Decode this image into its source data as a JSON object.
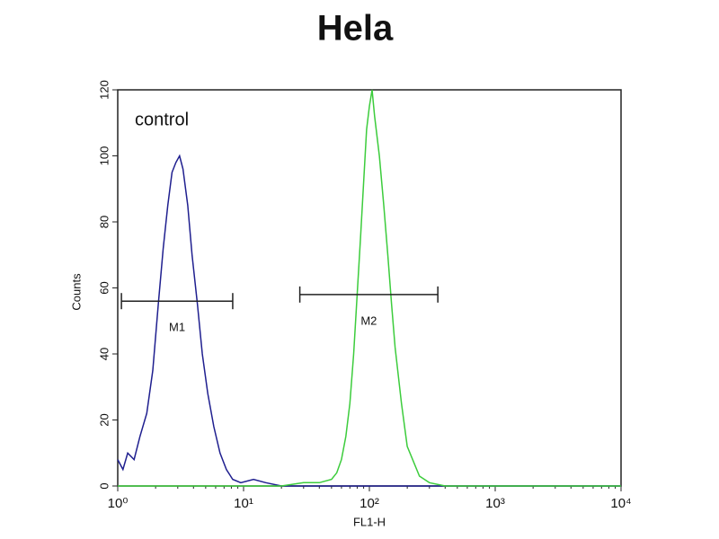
{
  "chart_data": {
    "type": "histogram-line",
    "title": "Hela",
    "xlabel": "FL1-H",
    "ylabel": "Counts",
    "annotation": "control",
    "xscale": "log",
    "xlim": [
      1,
      10000
    ],
    "ylim": [
      0,
      120
    ],
    "xticks": [
      {
        "value": 1,
        "label": "10⁰"
      },
      {
        "value": 10,
        "label": "10¹"
      },
      {
        "value": 100,
        "label": "10²"
      },
      {
        "value": 1000,
        "label": "10³"
      },
      {
        "value": 10000,
        "label": "10⁴"
      }
    ],
    "yticks": [
      0,
      20,
      40,
      60,
      80,
      100,
      120
    ],
    "series": [
      {
        "color": "#1f1f8f",
        "x": [
          1,
          1.1,
          1.2,
          1.35,
          1.5,
          1.7,
          1.9,
          2.1,
          2.3,
          2.5,
          2.7,
          2.9,
          3.1,
          3.3,
          3.6,
          3.9,
          4.3,
          4.7,
          5.2,
          5.8,
          6.5,
          7.3,
          8.2,
          9.5,
          12,
          15,
          20,
          30,
          50,
          100,
          1000,
          10000
        ],
        "values": [
          8,
          5,
          10,
          8,
          15,
          22,
          35,
          55,
          72,
          85,
          95,
          98,
          100,
          96,
          85,
          70,
          55,
          40,
          28,
          18,
          10,
          5,
          2,
          1,
          2,
          1,
          0,
          0,
          0,
          0,
          0,
          0
        ]
      },
      {
        "color": "#3ccc3c",
        "x": [
          1,
          10,
          20,
          30,
          40,
          50,
          55,
          60,
          65,
          70,
          75,
          80,
          85,
          90,
          95,
          100,
          105,
          110,
          120,
          130,
          140,
          150,
          160,
          180,
          200,
          250,
          300,
          400,
          1000,
          10000
        ],
        "values": [
          0,
          0,
          0,
          1,
          1,
          2,
          4,
          8,
          15,
          25,
          40,
          58,
          75,
          92,
          108,
          115,
          120,
          112,
          100,
          85,
          70,
          55,
          42,
          25,
          12,
          3,
          1,
          0,
          0,
          0
        ]
      }
    ],
    "markers": [
      {
        "label": "M1",
        "x": [
          1.07,
          8.2
        ],
        "y": 56
      },
      {
        "label": "M2",
        "x": [
          28,
          350
        ],
        "y": 58
      }
    ]
  }
}
